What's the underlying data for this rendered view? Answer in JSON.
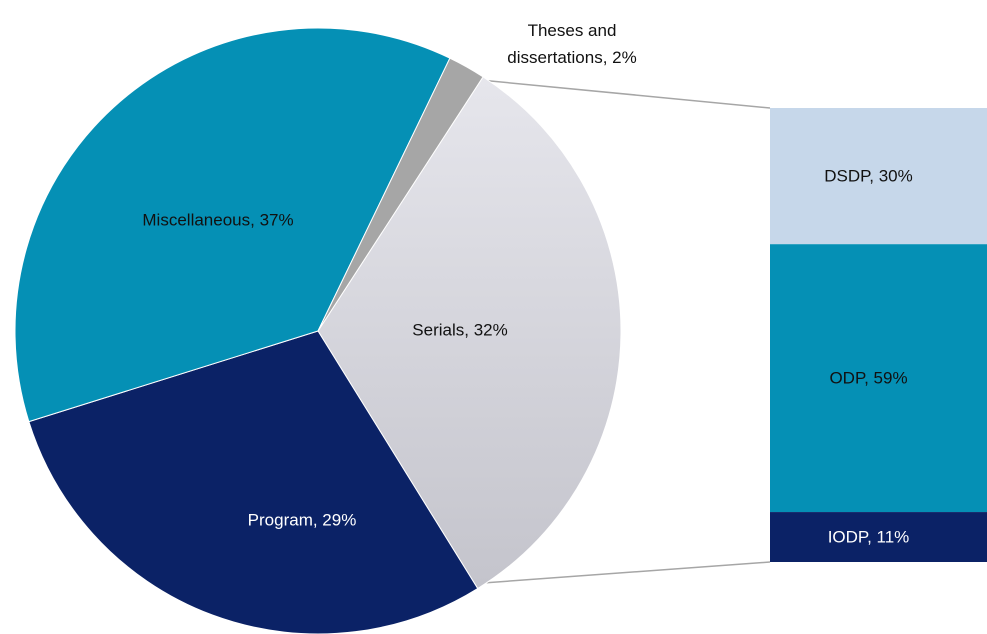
{
  "chart_data": [
    {
      "type": "pie",
      "values": [
        32,
        29,
        37,
        2
      ],
      "value_labels": [
        "Serials, 32%",
        "Program, 29%",
        "Miscellaneous, 37%",
        "Theses and dissertations, 2%"
      ],
      "colors": [
        "#d9d9e1",
        "#0b2266",
        "#0590b5",
        "#a6a6a6"
      ]
    },
    {
      "type": "bar",
      "values": [
        30,
        59,
        11
      ],
      "value_labels": [
        "DSDP, 30%",
        "ODP, 59%",
        "IODP, 11%"
      ],
      "colors": [
        "#c6d7ea",
        "#0590b5",
        "#0b2266"
      ]
    }
  ]
}
